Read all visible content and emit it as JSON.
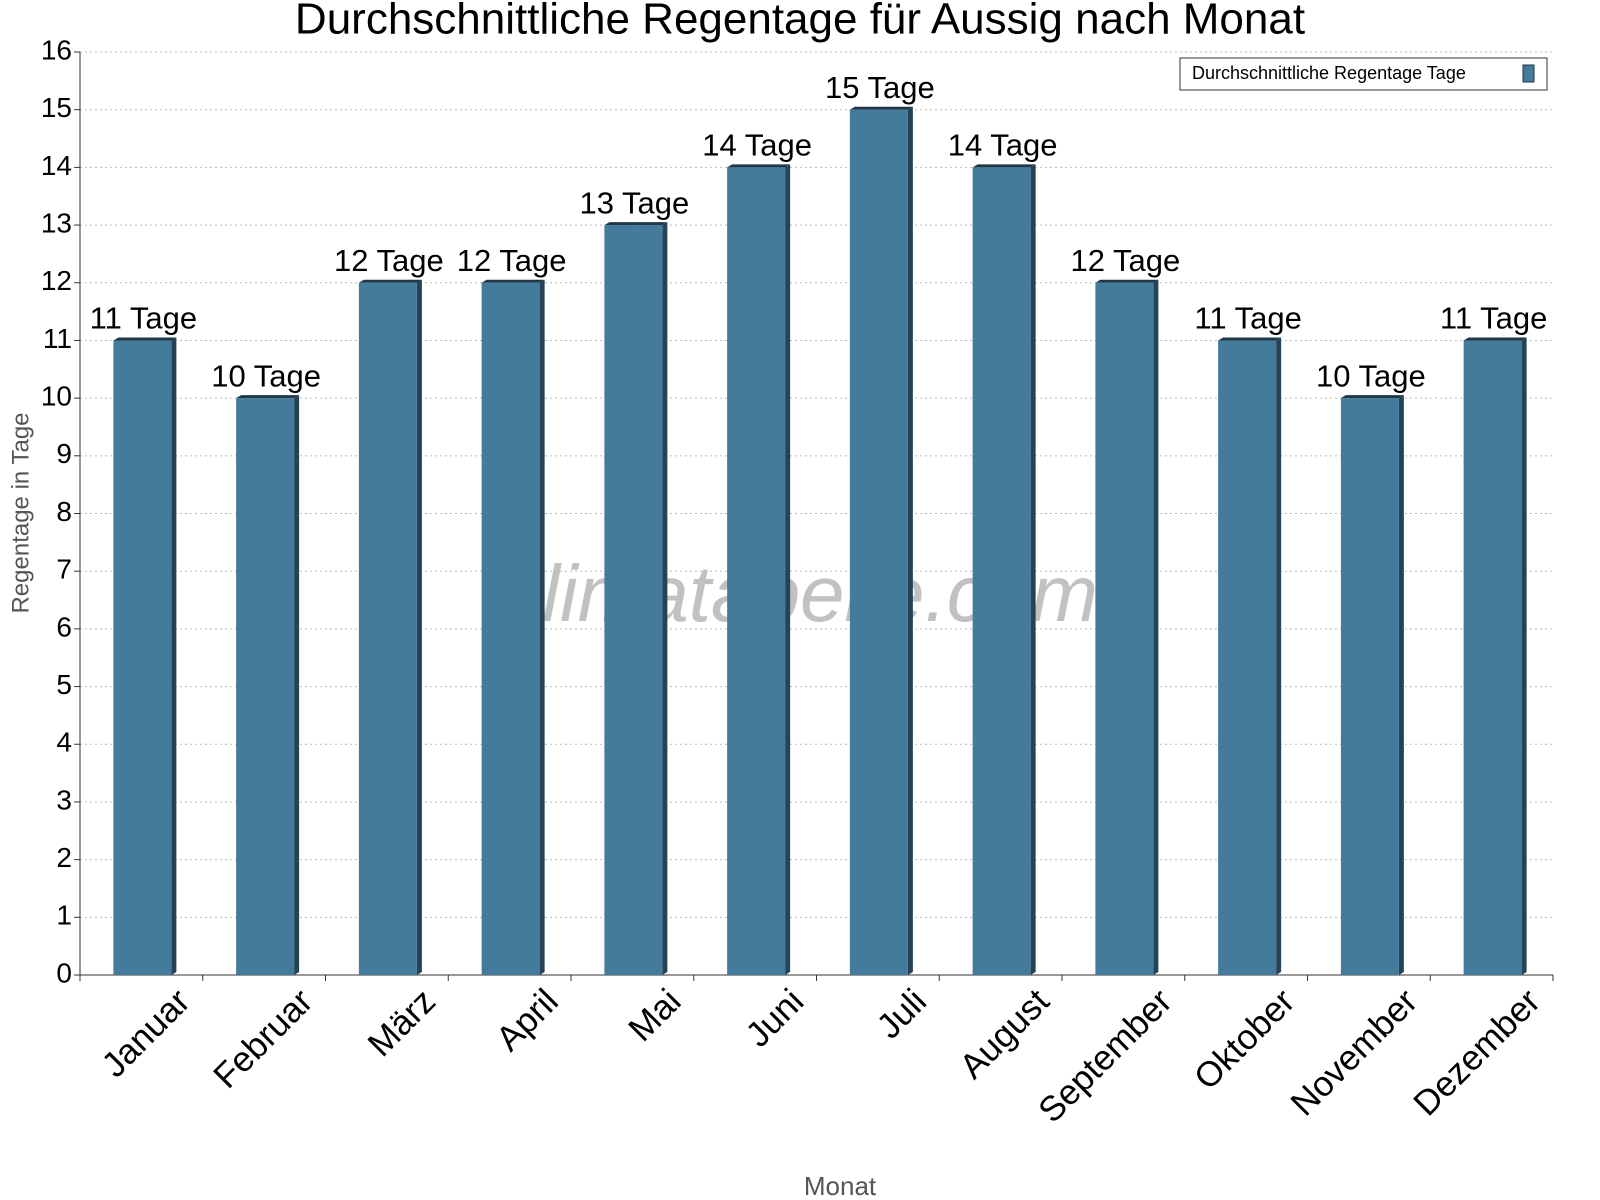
{
  "chart_data": {
    "type": "bar",
    "title": "Durchschnittliche Regentage für Aussig nach Monat",
    "x_label": "Monat",
    "y_label": "Regentage in Tage",
    "watermark": "klimatabelle.com",
    "categories": [
      "Januar",
      "Februar",
      "März",
      "April",
      "Mai",
      "Juni",
      "Juli",
      "August",
      "September",
      "Oktober",
      "November",
      "Dezember"
    ],
    "series": [
      {
        "name": "Durchschnittliche Regentage Tage",
        "color": "#447a9c",
        "values": [
          11,
          10,
          12,
          12,
          13,
          14,
          15,
          14,
          12,
          11,
          10,
          11
        ],
        "value_labels": [
          "11 Tage",
          "10 Tage",
          "12 Tage",
          "12 Tage",
          "13 Tage",
          "14 Tage",
          "15 Tage",
          "14 Tage",
          "12 Tage",
          "11 Tage",
          "10 Tage",
          "11 Tage"
        ]
      }
    ],
    "ylim": [
      0,
      16
    ],
    "yticks": [
      0,
      1,
      2,
      3,
      4,
      5,
      6,
      7,
      8,
      9,
      10,
      11,
      12,
      13,
      14,
      15,
      16
    ],
    "grid": true,
    "legend": "top-right"
  }
}
